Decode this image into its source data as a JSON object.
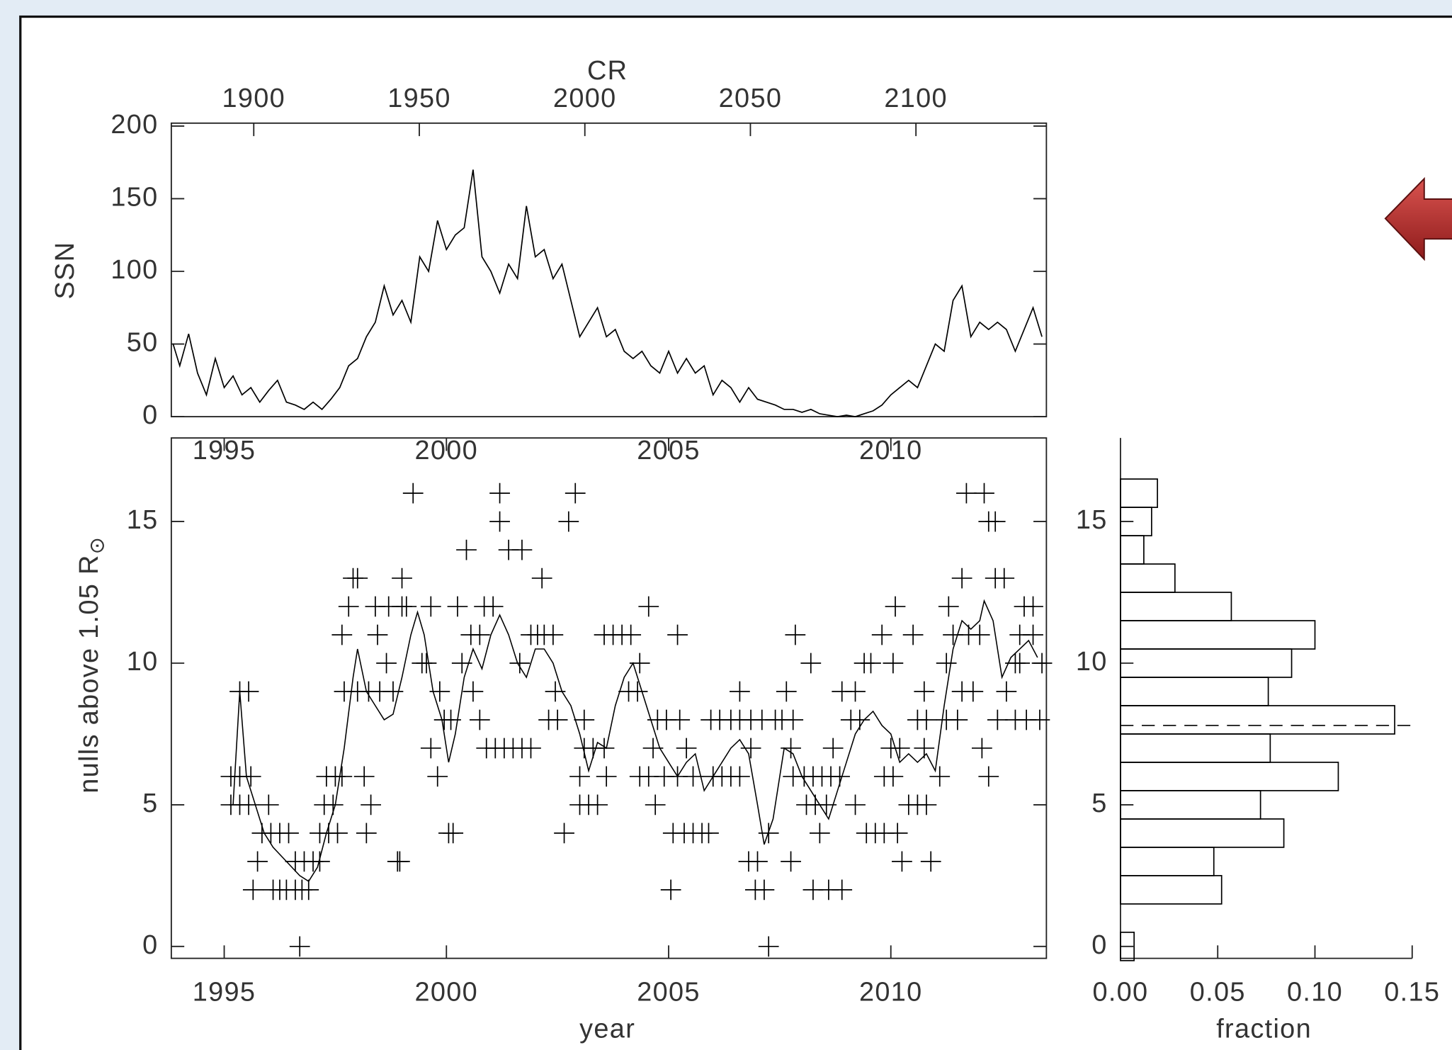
{
  "chart_data": [
    {
      "type": "line",
      "y_label": "SSN",
      "x2_label": "CR",
      "color": "#000000",
      "x": [
        1993.85,
        1994.0,
        1994.2,
        1994.4,
        1994.6,
        1994.8,
        1995.0,
        1995.2,
        1995.4,
        1995.6,
        1995.8,
        1996.0,
        1996.2,
        1996.4,
        1996.6,
        1996.8,
        1997.0,
        1997.2,
        1997.4,
        1997.6,
        1997.8,
        1998.0,
        1998.2,
        1998.4,
        1998.6,
        1998.8,
        1999.0,
        1999.2,
        1999.4,
        1999.6,
        1999.8,
        2000.0,
        2000.2,
        2000.4,
        2000.6,
        2000.8,
        2001.0,
        2001.2,
        2001.4,
        2001.6,
        2001.8,
        2002.0,
        2002.2,
        2002.4,
        2002.6,
        2002.8,
        2003.0,
        2003.2,
        2003.4,
        2003.6,
        2003.8,
        2004.0,
        2004.2,
        2004.4,
        2004.6,
        2004.8,
        2005.0,
        2005.2,
        2005.4,
        2005.6,
        2005.8,
        2006.0,
        2006.2,
        2006.4,
        2006.6,
        2006.8,
        2007.0,
        2007.2,
        2007.4,
        2007.6,
        2007.8,
        2008.0,
        2008.2,
        2008.4,
        2008.6,
        2008.8,
        2009.0,
        2009.2,
        2009.4,
        2009.6,
        2009.8,
        2010.0,
        2010.2,
        2010.4,
        2010.6,
        2010.8,
        2011.0,
        2011.2,
        2011.4,
        2011.6,
        2011.8,
        2012.0,
        2012.2,
        2012.4,
        2012.6,
        2012.8,
        2013.0,
        2013.2,
        2013.4
      ],
      "values": [
        50,
        35,
        57,
        30,
        15,
        40,
        20,
        28,
        15,
        20,
        10,
        18,
        25,
        10,
        8,
        5,
        10,
        5,
        12,
        20,
        35,
        40,
        55,
        65,
        90,
        70,
        80,
        65,
        110,
        100,
        135,
        115,
        125,
        130,
        170,
        110,
        100,
        85,
        105,
        95,
        145,
        110,
        115,
        95,
        105,
        80,
        55,
        65,
        75,
        55,
        60,
        45,
        40,
        45,
        35,
        30,
        45,
        30,
        40,
        30,
        35,
        15,
        25,
        20,
        10,
        20,
        12,
        10,
        8,
        5,
        5,
        3,
        5,
        2,
        1,
        0,
        1,
        0,
        2,
        4,
        8,
        15,
        20,
        25,
        20,
        35,
        50,
        45,
        80,
        90,
        55,
        65,
        60,
        65,
        60,
        45,
        60,
        75,
        55
      ],
      "xlim": [
        1993.81,
        2013.5
      ],
      "ylim": [
        0,
        202
      ],
      "yticks": [
        0,
        50,
        100,
        150,
        200
      ],
      "x2lim": [
        1875.1,
        2139.4
      ],
      "x2ticks": [
        1900,
        1950,
        2000,
        2050,
        2100
      ]
    },
    {
      "type": "scatter",
      "x_label": "year",
      "y_label": "nulls above 1.05 R",
      "y_label_subscript": "⊙",
      "color": "#000000",
      "points": {
        "x": [
          1999.25,
          2001.2,
          2002.9,
          2011.7,
          2012.1,
          2001.2,
          2002.75,
          2012.2,
          2012.35,
          2000.45,
          2001.4,
          2001.7,
          1997.9,
          1998.0,
          1999.0,
          2002.15,
          2011.6,
          2012.35,
          2012.55,
          1997.8,
          1998.4,
          1998.7,
          1999.0,
          1999.1,
          1999.65,
          2000.25,
          2000.85,
          2001.05,
          2004.55,
          2010.1,
          2011.3,
          2013.0,
          2013.2,
          1997.65,
          1998.45,
          2000.55,
          2000.75,
          2001.9,
          2002.05,
          2002.2,
          2002.4,
          2003.55,
          2003.75,
          2003.95,
          2004.15,
          2005.2,
          2007.85,
          2009.8,
          2010.5,
          2011.4,
          2011.75,
          2012.0,
          2012.9,
          2013.2,
          1998.65,
          1999.45,
          1999.55,
          2000.35,
          2001.65,
          2004.35,
          2008.2,
          2009.4,
          2009.55,
          2010.05,
          2011.25,
          2012.8,
          2012.9,
          2013.4,
          1995.35,
          1995.55,
          1997.7,
          1998.0,
          1998.25,
          1998.5,
          1998.8,
          1999.85,
          2000.6,
          2002.45,
          2004.1,
          2004.3,
          2006.6,
          2007.65,
          2008.9,
          2009.2,
          2010.75,
          2011.6,
          2011.85,
          2012.6,
          1999.95,
          2000.1,
          2000.75,
          2002.3,
          2002.5,
          2003.1,
          2004.75,
          2004.95,
          2005.25,
          2005.95,
          2006.15,
          2006.4,
          2006.6,
          2006.85,
          2007.1,
          2007.4,
          2007.55,
          2007.8,
          2009.1,
          2009.3,
          2010.6,
          2010.8,
          2011.25,
          2011.5,
          2012.4,
          2012.8,
          2013.05,
          2013.35,
          1999.65,
          2000.9,
          2001.1,
          2001.3,
          2001.5,
          2001.7,
          2001.9,
          2003.1,
          2003.3,
          2003.55,
          2004.65,
          2005.4,
          2006.85,
          2007.75,
          2008.7,
          2010.0,
          2010.2,
          2010.75,
          2012.05,
          1995.15,
          1995.35,
          1995.6,
          1997.3,
          1997.5,
          1997.65,
          1998.15,
          1999.8,
          2003.0,
          2003.6,
          2004.35,
          2004.55,
          2004.9,
          2005.2,
          2005.55,
          2006.0,
          2006.2,
          2006.4,
          2006.6,
          2007.8,
          2008.05,
          2008.25,
          2008.45,
          2008.65,
          2008.85,
          2009.85,
          2010.05,
          2011.1,
          2012.2,
          1995.15,
          1995.35,
          1995.55,
          1996.0,
          1997.25,
          1997.45,
          1998.3,
          2003.0,
          2003.2,
          2003.4,
          2004.7,
          2008.1,
          2008.3,
          2008.55,
          2009.2,
          2010.4,
          2010.6,
          2010.8,
          1995.85,
          1996.05,
          1996.25,
          1996.45,
          1997.15,
          1997.35,
          1997.55,
          1998.2,
          2000.05,
          2000.15,
          2002.65,
          2005.1,
          2005.35,
          2005.55,
          2005.75,
          2005.9,
          2007.25,
          2008.4,
          2009.45,
          2009.65,
          2009.85,
          2010.15,
          1995.75,
          1996.6,
          1996.8,
          1997.0,
          1997.15,
          1998.9,
          1998.95,
          2006.8,
          2007.0,
          2007.75,
          2010.25,
          2010.9,
          1995.65,
          1996.1,
          1996.25,
          1996.4,
          1996.6,
          1996.75,
          1996.9,
          2005.05,
          2006.95,
          2007.15,
          2008.25,
          2008.6,
          2008.9,
          1996.7,
          2007.25
        ],
        "values": [
          16,
          16,
          16,
          16,
          16,
          15,
          15,
          15,
          15,
          14,
          14,
          14,
          13,
          13,
          13,
          13,
          13,
          13,
          13,
          12,
          12,
          12,
          12,
          12,
          12,
          12,
          12,
          12,
          12,
          12,
          12,
          12,
          12,
          11,
          11,
          11,
          11,
          11,
          11,
          11,
          11,
          11,
          11,
          11,
          11,
          11,
          11,
          11,
          11,
          11,
          11,
          11,
          11,
          11,
          10,
          10,
          10,
          10,
          10,
          10,
          10,
          10,
          10,
          10,
          10,
          10,
          10,
          10,
          9,
          9,
          9,
          9,
          9,
          9,
          9,
          9,
          9,
          9,
          9,
          9,
          9,
          9,
          9,
          9,
          9,
          9,
          9,
          9,
          8,
          8,
          8,
          8,
          8,
          8,
          8,
          8,
          8,
          8,
          8,
          8,
          8,
          8,
          8,
          8,
          8,
          8,
          8,
          8,
          8,
          8,
          8,
          8,
          8,
          8,
          8,
          8,
          7,
          7,
          7,
          7,
          7,
          7,
          7,
          7,
          7,
          7,
          7,
          7,
          7,
          7,
          7,
          7,
          7,
          7,
          7,
          6,
          6,
          6,
          6,
          6,
          6,
          6,
          6,
          6,
          6,
          6,
          6,
          6,
          6,
          6,
          6,
          6,
          6,
          6,
          6,
          6,
          6,
          6,
          6,
          6,
          6,
          6,
          6,
          6,
          5,
          5,
          5,
          5,
          5,
          5,
          5,
          5,
          5,
          5,
          5,
          5,
          5,
          5,
          5,
          5,
          5,
          5,
          4,
          4,
          4,
          4,
          4,
          4,
          4,
          4,
          4,
          4,
          4,
          4,
          4,
          4,
          4,
          4,
          4,
          4,
          4,
          4,
          4,
          4,
          3,
          3,
          3,
          3,
          3,
          3,
          3,
          3,
          3,
          3,
          3,
          3,
          2,
          2,
          2,
          2,
          2,
          2,
          2,
          2,
          2,
          2,
          2,
          2,
          2,
          0,
          0
        ]
      },
      "running_mean": {
        "x": [
          1995.2,
          1995.35,
          1995.5,
          1995.7,
          1995.9,
          1996.1,
          1996.4,
          1996.7,
          1996.9,
          1997.1,
          1997.3,
          1997.5,
          1997.7,
          1997.9,
          1998.0,
          1998.2,
          1998.4,
          1998.6,
          1998.8,
          1999.0,
          1999.2,
          1999.35,
          1999.5,
          1999.7,
          1999.9,
          2000.05,
          2000.2,
          2000.4,
          2000.6,
          2000.8,
          2001.0,
          2001.2,
          2001.4,
          2001.6,
          2001.8,
          2002.0,
          2002.2,
          2002.4,
          2002.6,
          2002.8,
          2003.0,
          2003.2,
          2003.4,
          2003.6,
          2003.8,
          2004.0,
          2004.2,
          2004.4,
          2004.6,
          2004.8,
          2005.0,
          2005.2,
          2005.4,
          2005.6,
          2005.8,
          2006.0,
          2006.2,
          2006.4,
          2006.6,
          2006.8,
          2007.0,
          2007.15,
          2007.35,
          2007.6,
          2007.8,
          2008.0,
          2008.2,
          2008.4,
          2008.6,
          2008.8,
          2009.0,
          2009.2,
          2009.4,
          2009.6,
          2009.8,
          2010.0,
          2010.2,
          2010.4,
          2010.6,
          2010.8,
          2011.0,
          2011.2,
          2011.4,
          2011.6,
          2011.8,
          2012.0,
          2012.1,
          2012.3,
          2012.5,
          2012.7,
          2012.9,
          2013.1,
          2013.3
        ],
        "values": [
          5,
          9,
          6,
          5,
          4,
          3.5,
          3,
          2.5,
          2.3,
          2.8,
          4,
          5,
          7,
          9.5,
          10.5,
          9,
          8.5,
          8,
          8.2,
          9.5,
          11,
          11.8,
          11,
          9,
          8,
          6.5,
          7.5,
          9.5,
          10.5,
          9.8,
          11,
          11.7,
          11,
          10,
          9.5,
          10.5,
          10.5,
          10,
          9,
          8.5,
          7.5,
          6.2,
          7.2,
          7,
          8.5,
          9.5,
          10,
          9,
          8,
          7,
          6.5,
          6,
          6.5,
          6.8,
          5.5,
          6,
          6.5,
          7,
          7.3,
          6.8,
          5,
          3.6,
          4.5,
          7,
          6.8,
          6,
          5.5,
          5,
          4.5,
          5.5,
          6.5,
          7.5,
          8,
          8.3,
          7.8,
          7.5,
          6.5,
          6.8,
          6.5,
          6.8,
          6.2,
          8.5,
          10.5,
          11.5,
          11.2,
          11.5,
          12.2,
          11.5,
          9.5,
          10.2,
          10.5,
          10.8,
          10.2
        ]
      },
      "xlim": [
        1993.81,
        2013.5
      ],
      "xticks": [
        1995,
        2000,
        2005,
        2010
      ],
      "ylim": [
        -0.42,
        17.95
      ],
      "yticks": [
        0,
        5,
        10,
        15
      ]
    },
    {
      "type": "histogram",
      "orientation": "horizontal",
      "x_label": "fraction",
      "color": "#000000",
      "bins": [
        -0.5,
        0.5,
        1.5,
        2.5,
        3.5,
        4.5,
        5.5,
        6.5,
        7.5,
        8.5,
        9.5,
        10.5,
        11.5,
        12.5,
        13.5,
        14.5,
        15.5,
        16.5
      ],
      "values": [
        0.007,
        0,
        0.052,
        0.048,
        0.084,
        0.072,
        0.112,
        0.077,
        0.141,
        0.076,
        0.088,
        0.1,
        0.057,
        0.028,
        0.012,
        0.016,
        0.019
      ],
      "reference_line": 7.8,
      "xlim": [
        0,
        0.15
      ],
      "xticks": [
        {
          "value": 0,
          "label": "0.00"
        },
        {
          "value": 0.05,
          "label": "0.05"
        },
        {
          "value": 0.1,
          "label": "0.10"
        },
        {
          "value": 0.15,
          "label": "0.15"
        }
      ],
      "ylim": [
        -0.42,
        17.95
      ],
      "yticks": [
        0,
        5,
        10,
        15
      ]
    }
  ]
}
